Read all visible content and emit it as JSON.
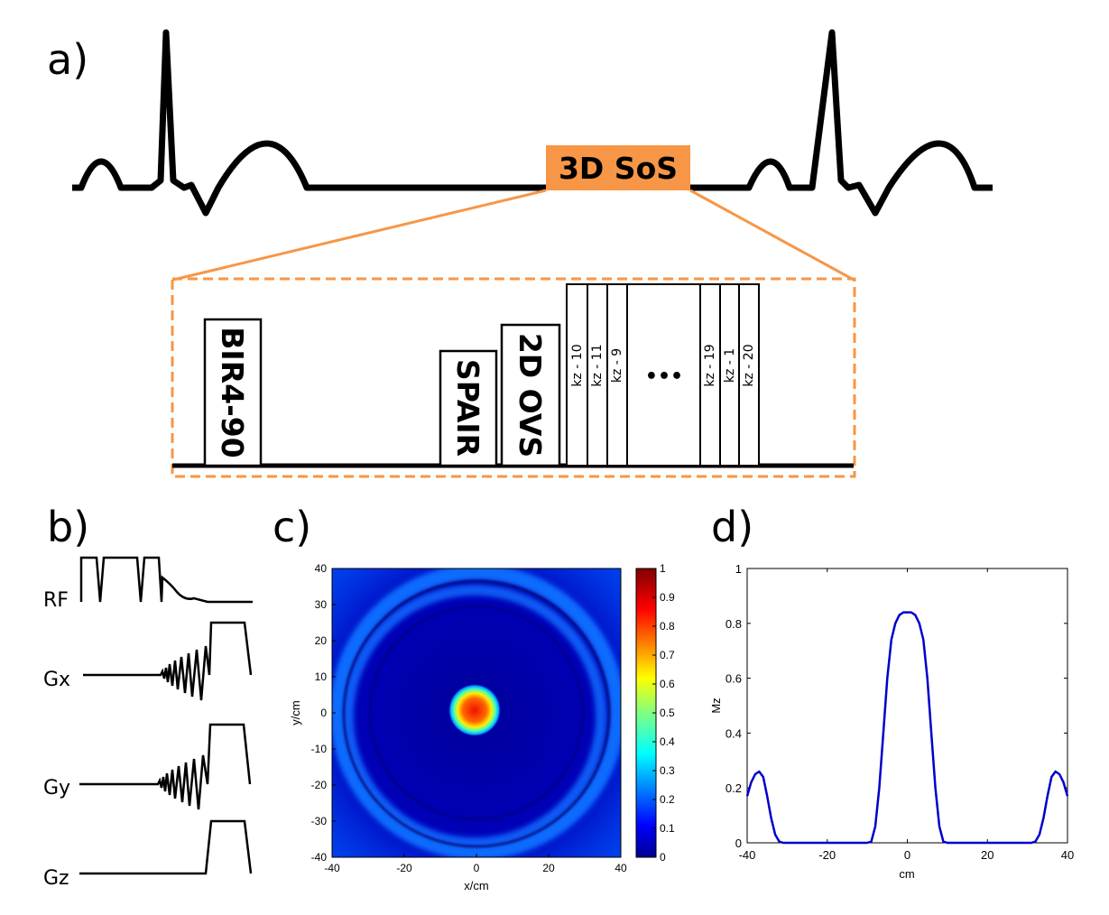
{
  "panels": {
    "a": "a)",
    "b": "b)",
    "c": "c)",
    "d": "d)"
  },
  "panel_a": {
    "window_label": "3D SoS",
    "pulses": {
      "bir4": "BIR4-90",
      "spair": "SPAIR",
      "ovs": "2D OVS"
    },
    "kz_labels": [
      "kz - 10",
      "kz - 11",
      "kz - 9",
      "kz - 19",
      "kz - 1",
      "kz - 20"
    ],
    "ellipsis": "•••",
    "colors": {
      "accent": "#f79646"
    }
  },
  "panel_b": {
    "labels": [
      "RF",
      "Gx",
      "Gy",
      "Gz"
    ]
  },
  "panel_c": {
    "xlabel": "x/cm",
    "ylabel": "y/cm",
    "xticks": [
      "-40",
      "-20",
      "0",
      "20",
      "40"
    ],
    "yticks": [
      "40",
      "30",
      "20",
      "10",
      "0",
      "-10",
      "-20",
      "-30",
      "-40"
    ],
    "colorbar_ticks": [
      "1",
      "0.9",
      "0.8",
      "0.7",
      "0.6",
      "0.5",
      "0.4",
      "0.3",
      "0.2",
      "0.1",
      "0"
    ],
    "colormap": "jet"
  },
  "chart_data": [
    {
      "type": "heatmap",
      "title": "",
      "xlabel": "x/cm",
      "ylabel": "y/cm",
      "xlim": [
        -40,
        40
      ],
      "ylim": [
        -40,
        40
      ],
      "clim": [
        0,
        1
      ],
      "colormap": "jet",
      "features": [
        {
          "kind": "disk",
          "center": [
            0,
            0
          ],
          "radius_cm": 6,
          "peak_value": 0.85
        },
        {
          "kind": "ring",
          "center": [
            0,
            0
          ],
          "radius_cm": 38,
          "value": 0.25
        },
        {
          "kind": "ring",
          "center": [
            0,
            0
          ],
          "radius_cm": 34,
          "value": 0.2
        }
      ],
      "background_value": 0.02
    },
    {
      "type": "line",
      "title": "",
      "xlabel": "cm",
      "ylabel": "Mz",
      "xlim": [
        -40,
        40
      ],
      "ylim": [
        0,
        1
      ],
      "xticks": [
        "-40",
        "-20",
        "0",
        "20",
        "40"
      ],
      "yticks": [
        "0",
        "0.2",
        "0.4",
        "0.6",
        "0.8",
        "1"
      ],
      "series": [
        {
          "name": "Mz",
          "color": "#0000cc",
          "x": [
            -40,
            -39,
            -38,
            -37,
            -36,
            -35,
            -34,
            -33,
            -32,
            -31,
            -30,
            -20,
            -10,
            -9,
            -8,
            -7,
            -6,
            -5,
            -4,
            -3,
            -2,
            -1,
            0,
            1,
            2,
            3,
            4,
            5,
            6,
            7,
            8,
            9,
            10,
            20,
            30,
            31,
            32,
            33,
            34,
            35,
            36,
            37,
            38,
            39,
            40
          ],
          "y": [
            0.17,
            0.22,
            0.25,
            0.26,
            0.24,
            0.17,
            0.09,
            0.03,
            0.005,
            0,
            0,
            0,
            0,
            0.005,
            0.06,
            0.2,
            0.4,
            0.6,
            0.74,
            0.8,
            0.83,
            0.84,
            0.84,
            0.84,
            0.83,
            0.8,
            0.74,
            0.6,
            0.4,
            0.2,
            0.06,
            0.005,
            0,
            0,
            0,
            0,
            0.005,
            0.03,
            0.09,
            0.17,
            0.24,
            0.26,
            0.25,
            0.22,
            0.17
          ]
        }
      ]
    }
  ]
}
